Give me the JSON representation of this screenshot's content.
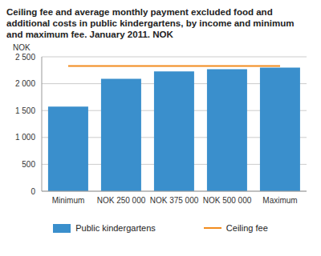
{
  "chart_data": {
    "type": "bar",
    "title": "Ceiling fee and average monthly payment excluded food and additional costs in public kindergartens, by income and minimum and maximum fee. January 2011. NOK",
    "y_label": "NOK",
    "categories": [
      "Minimum",
      "NOK 250 000",
      "NOK 375 000",
      "NOK 500 000",
      "Maximum"
    ],
    "series": [
      {
        "name": "Public kindergartens",
        "type": "bar",
        "color": "#3a8fcc",
        "values": [
          1575,
          2090,
          2230,
          2270,
          2300
        ]
      },
      {
        "name": "Ceiling fee",
        "type": "line",
        "color": "#f28c1e",
        "values": [
          2330,
          2330,
          2330,
          2330,
          2330
        ]
      }
    ],
    "ylim": [
      0,
      2500
    ],
    "yticks": [
      0,
      500,
      {
        "value": 1000,
        "label": "1 000"
      },
      {
        "value": 1500,
        "label": "1 500"
      },
      {
        "value": 2000,
        "label": "2 000"
      },
      {
        "value": 2500,
        "label": "2 500"
      }
    ],
    "grid": true,
    "legend": "bottom"
  }
}
